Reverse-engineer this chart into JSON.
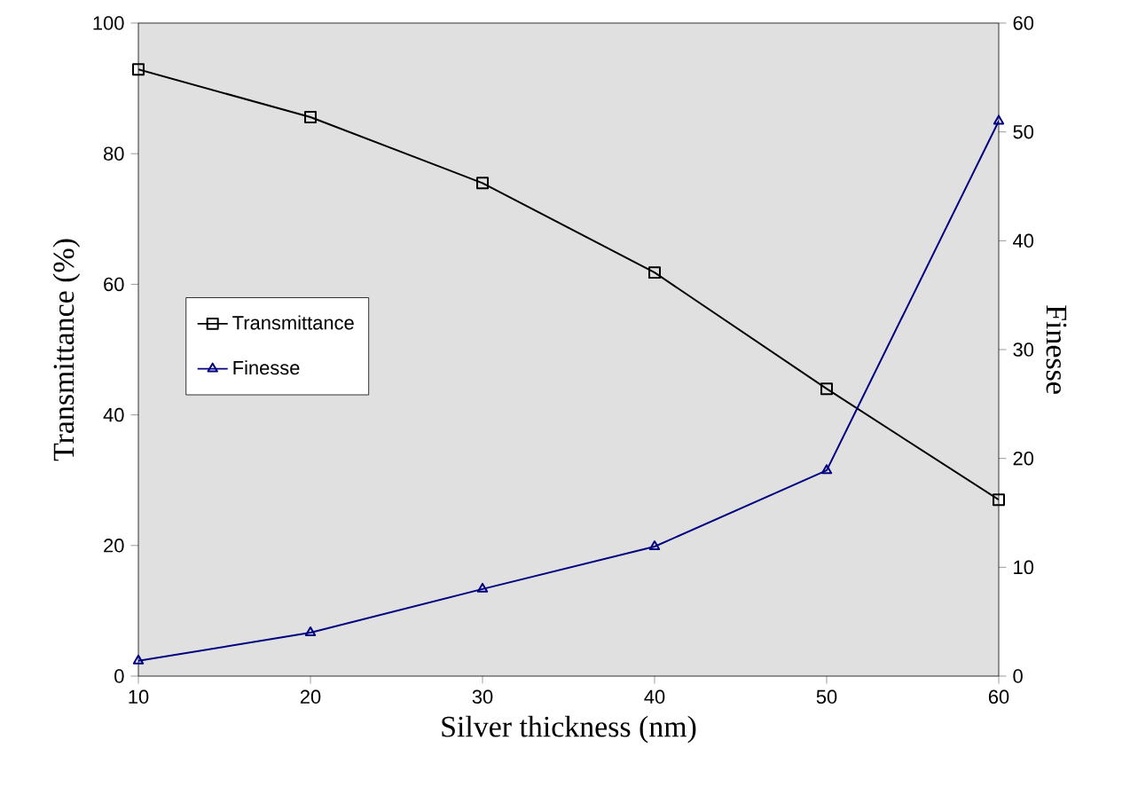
{
  "chart_data": {
    "type": "line",
    "xlabel": "Silver thickness (nm)",
    "ylabel": "Transmittance (%)",
    "y2label": "Finesse",
    "x": [
      10,
      20,
      30,
      40,
      50,
      60
    ],
    "xlim": [
      10,
      60
    ],
    "xticks": [
      10,
      20,
      30,
      40,
      50,
      60
    ],
    "ylim": [
      0,
      100
    ],
    "yticks": [
      0,
      20,
      40,
      60,
      80,
      100
    ],
    "y2lim": [
      0,
      60
    ],
    "y2ticks": [
      0,
      10,
      20,
      30,
      40,
      50,
      60
    ],
    "legend": "left",
    "line_style": "solid",
    "series": [
      {
        "name": "Transmittance",
        "color": "#000000",
        "marker": "square",
        "values": [
          92.9,
          85.6,
          75.5,
          61.8,
          44,
          27
        ]
      },
      {
        "name": "Finesse",
        "color": "#000080",
        "marker": "triangle",
        "axis": "y2",
        "values": [
          1.4,
          4.0,
          8.0,
          11.9,
          18.9,
          51.0
        ]
      }
    ]
  }
}
